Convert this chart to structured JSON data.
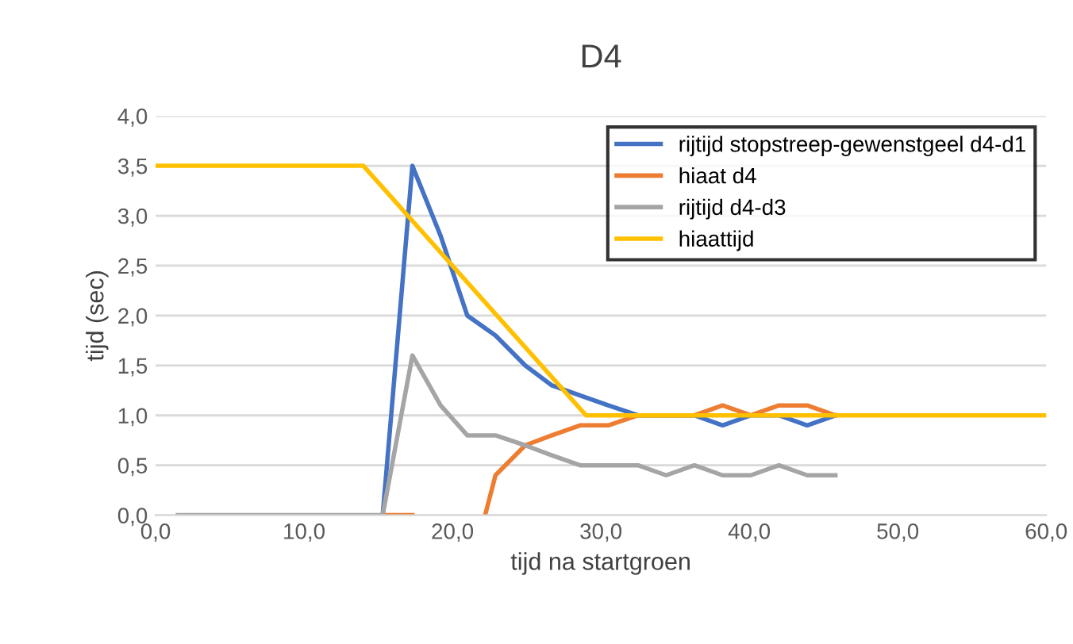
{
  "chart_data": {
    "type": "line",
    "title": "D4",
    "xlabel": "tijd na startgroen",
    "ylabel": "tijd (sec)",
    "xlim": [
      0,
      60
    ],
    "xticks": [
      {
        "value": 0,
        "label": "0,0"
      },
      {
        "value": 10,
        "label": "10,0"
      },
      {
        "value": 20,
        "label": "20,0"
      },
      {
        "value": 30,
        "label": "30,0"
      },
      {
        "value": 40,
        "label": "40,0"
      },
      {
        "value": 50,
        "label": "50,0"
      },
      {
        "value": 60,
        "label": "60,0"
      }
    ],
    "ylim": [
      0,
      4
    ],
    "yticks": [
      {
        "value": 0,
        "label": "0,0"
      },
      {
        "value": 0.5,
        "label": "0,5"
      },
      {
        "value": 1,
        "label": "1,0"
      },
      {
        "value": 1.5,
        "label": "1,5"
      },
      {
        "value": 2,
        "label": "2,0"
      },
      {
        "value": 2.5,
        "label": "2,5"
      },
      {
        "value": 3,
        "label": "3,0"
      },
      {
        "value": 3.5,
        "label": "3,5"
      },
      {
        "value": 4,
        "label": "4,0"
      }
    ],
    "grid": "y",
    "legend": "top right",
    "marker": "none",
    "line_style": "solid",
    "series": [
      {
        "name": "rijtijd stopstreep-gewenstgeel d4-d1",
        "color": "#4472c4",
        "x": [
          15.3,
          17.3,
          19.2,
          21.0,
          22.9,
          24.9,
          26.7,
          28.6,
          30.5,
          32.5,
          36.3,
          38.2,
          40.1,
          42,
          43.9,
          45.8
        ],
        "values": [
          0,
          3.5,
          2.8,
          2.0,
          1.8,
          1.5,
          1.3,
          1.2,
          1.1,
          1.0,
          1.0,
          0.9,
          1.0,
          1.0,
          0.9,
          1.0
        ]
      },
      {
        "name": "hiaat d4",
        "color": "#ed7d31",
        "x": [
          15.3,
          17.3,
          19.2,
          22.2,
          22.9,
          24.9,
          26.7,
          28.6,
          30.5,
          32.5,
          34.4,
          36.3,
          38.2,
          40.1,
          42,
          43.9,
          45.8
        ],
        "values": [
          0,
          0,
          null,
          0,
          0.4,
          0.7,
          0.8,
          0.9,
          0.9,
          1.0,
          1.0,
          1.0,
          1.1,
          1.0,
          1.1,
          1.1,
          1.0
        ]
      },
      {
        "name": "rijtijd d4-d3",
        "color": "#a5a5a5",
        "x": [
          1.5,
          15.3,
          17.3,
          19.2,
          21.0,
          22.9,
          24.9,
          26.7,
          28.6,
          30.5,
          32.5,
          34.4,
          36.3,
          38.2,
          40.1,
          42,
          43.9,
          45.8
        ],
        "values": [
          0,
          0,
          1.6,
          1.1,
          0.8,
          0.8,
          0.7,
          0.6,
          0.5,
          0.5,
          0.5,
          0.4,
          0.5,
          0.4,
          0.4,
          0.5,
          0.4,
          0.4
        ]
      },
      {
        "name": "hiaattijd",
        "color": "#ffc000",
        "x": [
          0,
          14,
          29,
          60
        ],
        "values": [
          3.5,
          3.5,
          1.0,
          1.0
        ]
      }
    ]
  }
}
